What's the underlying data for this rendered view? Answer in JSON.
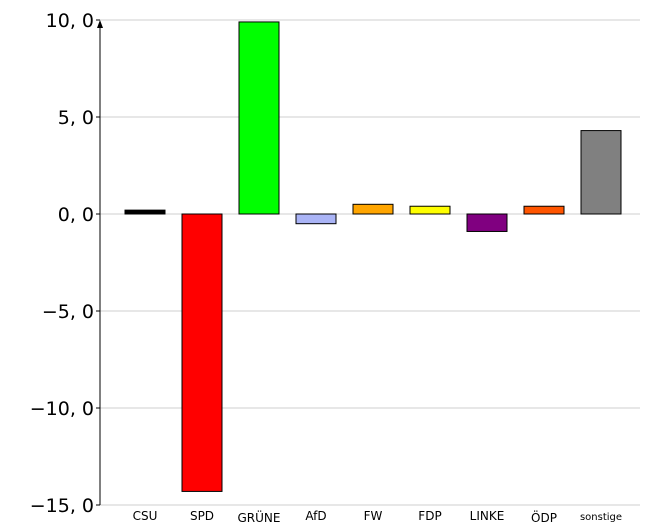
{
  "chart_data": {
    "type": "bar",
    "title": "",
    "xlabel": "",
    "ylabel": "",
    "categories": [
      "CSU",
      "SPD",
      "GRÜNE",
      "AfD",
      "FW",
      "FDP",
      "LINKE",
      "ÖDP",
      "sonstige"
    ],
    "values": [
      0.2,
      -14.3,
      9.9,
      -0.5,
      0.5,
      0.4,
      -0.9,
      0.4,
      4.3
    ],
    "colors": [
      "#000000",
      "#ff0000",
      "#00ff00",
      "#aab4f6",
      "#ffa500",
      "#ffff00",
      "#800080",
      "#ff5500",
      "#808080"
    ],
    "ylim": [
      -15,
      10
    ],
    "yticks": [
      10,
      5,
      0,
      -5,
      -10,
      -15
    ],
    "ytick_labels": [
      "10, 0",
      "5, 0",
      "0, 0",
      "−5, 0",
      "−10, 0",
      "−15, 0"
    ],
    "grid": true
  }
}
